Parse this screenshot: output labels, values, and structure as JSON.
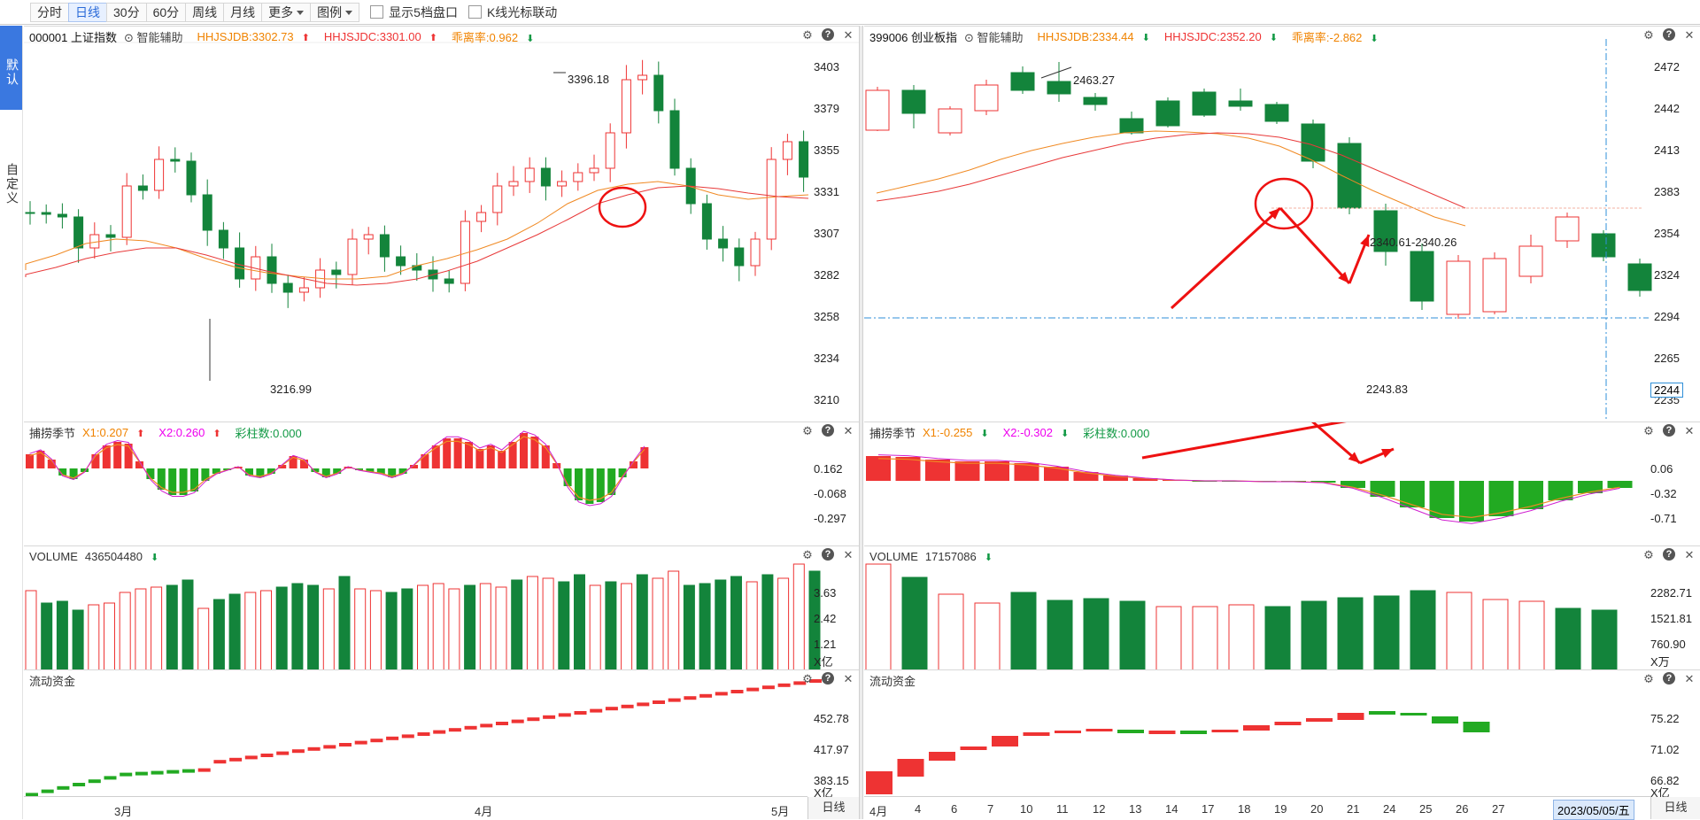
{
  "toolbar": {
    "periods": [
      "分时",
      "日线",
      "30分",
      "60分",
      "周线",
      "月线"
    ],
    "active": "日线",
    "more": "更多",
    "legend": "图例",
    "cb_depth": "显示5档盘口",
    "cb_cursor": "K线光标联动"
  },
  "sidebar": {
    "default": "默认",
    "custom": "自定义"
  },
  "left": {
    "title": "000001 上证指数",
    "assist": "智能辅助",
    "jdb": "HHJSJDB:3302.73",
    "jdc": "HHJSJDC:3301.00",
    "dev": "乖离率:0.962",
    "yticks": [
      "3403",
      "3379",
      "3355",
      "3331",
      "3307",
      "3282",
      "3258",
      "3234",
      "3210"
    ],
    "high_label": "3396.18",
    "low_label": "3216.99",
    "osc": {
      "title": "捕捞季节",
      "x1": "X1:0.207",
      "x2": "X2:0.260",
      "bar": "彩柱数:0.000",
      "ticks": [
        "0.162",
        "-0.068",
        "-0.297"
      ]
    },
    "vol": {
      "title": "VOLUME",
      "value": "436504480",
      "ticks": [
        "3.63",
        "2.42",
        "1.21"
      ],
      "unit": "X亿"
    },
    "flow": {
      "title": "流动资金",
      "ticks": [
        "452.78",
        "417.97",
        "383.15"
      ],
      "unit": "X亿"
    },
    "xlabels": [
      "3月",
      "4月",
      "5月"
    ],
    "day_btn": "日线"
  },
  "right": {
    "title": "399006 创业板指",
    "assist": "智能辅助",
    "jdb": "HHJSJDB:2334.44",
    "jdc": "HHJSJDC:2352.20",
    "dev": "乖离率:-2.862",
    "yticks": [
      "2472",
      "2442",
      "2413",
      "2383",
      "2354",
      "2324",
      "2294",
      "2265",
      "2235"
    ],
    "cursor_price": "2244",
    "high_label": "2463.27",
    "low_label": "2243.83",
    "range_label": "2340.61-2340.26",
    "osc": {
      "title": "捕捞季节",
      "x1": "X1:-0.255",
      "x2": "X2:-0.302",
      "bar": "彩柱数:0.000",
      "ticks": [
        "0.06",
        "-0.32",
        "-0.71"
      ]
    },
    "vol": {
      "title": "VOLUME",
      "value": "17157086",
      "ticks": [
        "2282.71",
        "1521.81",
        "760.90"
      ],
      "unit": "X万"
    },
    "flow": {
      "title": "流动资金",
      "ticks": [
        "75.22",
        "71.02",
        "66.82"
      ],
      "unit": "X亿"
    },
    "xlabels": [
      "4月",
      "4",
      "6",
      "7",
      "10",
      "11",
      "12",
      "13",
      "14",
      "17",
      "18",
      "19",
      "20",
      "21",
      "24",
      "25",
      "26",
      "27"
    ],
    "date_label": "2023/05/05/五",
    "day_btn": "日线"
  },
  "colors": {
    "up": "#ee3333",
    "down": "#13843b",
    "ma1": "#f08a24",
    "ma2": "#e83a3a",
    "annot": "#ee1111",
    "cursor": "#2f8fd8"
  }
}
